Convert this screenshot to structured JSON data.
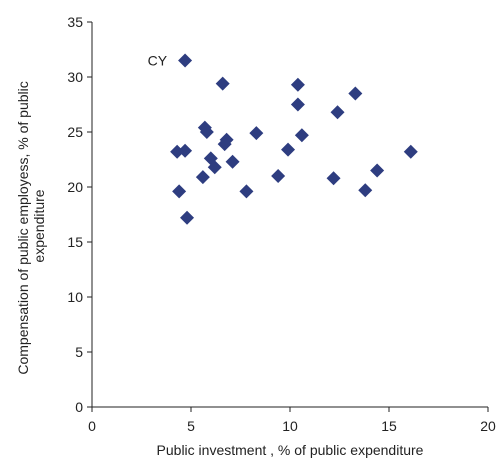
{
  "chart_data": {
    "type": "scatter",
    "xlabel": "Public investment , % of  public expenditure",
    "ylabel_lines": [
      "Compensation of  public employess, % of public",
      "expenditure"
    ],
    "xlim": [
      0,
      20
    ],
    "ylim": [
      0,
      35
    ],
    "x_ticks": [
      0,
      5,
      10,
      15,
      20
    ],
    "y_ticks": [
      0,
      5,
      10,
      15,
      20,
      25,
      30,
      35
    ],
    "grid": false,
    "legend": "none",
    "marker": "diamond",
    "marker_color": "#2E3D80",
    "annotations": [
      {
        "text": "CY",
        "x": 4.7,
        "y": 31.5
      }
    ],
    "points": [
      {
        "x": 4.7,
        "y": 31.5
      },
      {
        "x": 6.6,
        "y": 29.4
      },
      {
        "x": 10.4,
        "y": 29.3
      },
      {
        "x": 13.3,
        "y": 28.5
      },
      {
        "x": 10.4,
        "y": 27.5
      },
      {
        "x": 12.4,
        "y": 26.8
      },
      {
        "x": 5.7,
        "y": 25.4
      },
      {
        "x": 5.8,
        "y": 25.0
      },
      {
        "x": 8.3,
        "y": 24.9
      },
      {
        "x": 10.6,
        "y": 24.7
      },
      {
        "x": 6.8,
        "y": 24.3
      },
      {
        "x": 6.7,
        "y": 23.9
      },
      {
        "x": 9.9,
        "y": 23.4
      },
      {
        "x": 4.7,
        "y": 23.3
      },
      {
        "x": 4.3,
        "y": 23.2
      },
      {
        "x": 16.1,
        "y": 23.2
      },
      {
        "x": 6.0,
        "y": 22.6
      },
      {
        "x": 7.1,
        "y": 22.3
      },
      {
        "x": 6.2,
        "y": 21.8
      },
      {
        "x": 14.4,
        "y": 21.5
      },
      {
        "x": 9.4,
        "y": 21.0
      },
      {
        "x": 5.6,
        "y": 20.9
      },
      {
        "x": 12.2,
        "y": 20.8
      },
      {
        "x": 4.4,
        "y": 19.6
      },
      {
        "x": 7.8,
        "y": 19.6
      },
      {
        "x": 13.8,
        "y": 19.7
      },
      {
        "x": 4.8,
        "y": 17.2
      }
    ]
  }
}
